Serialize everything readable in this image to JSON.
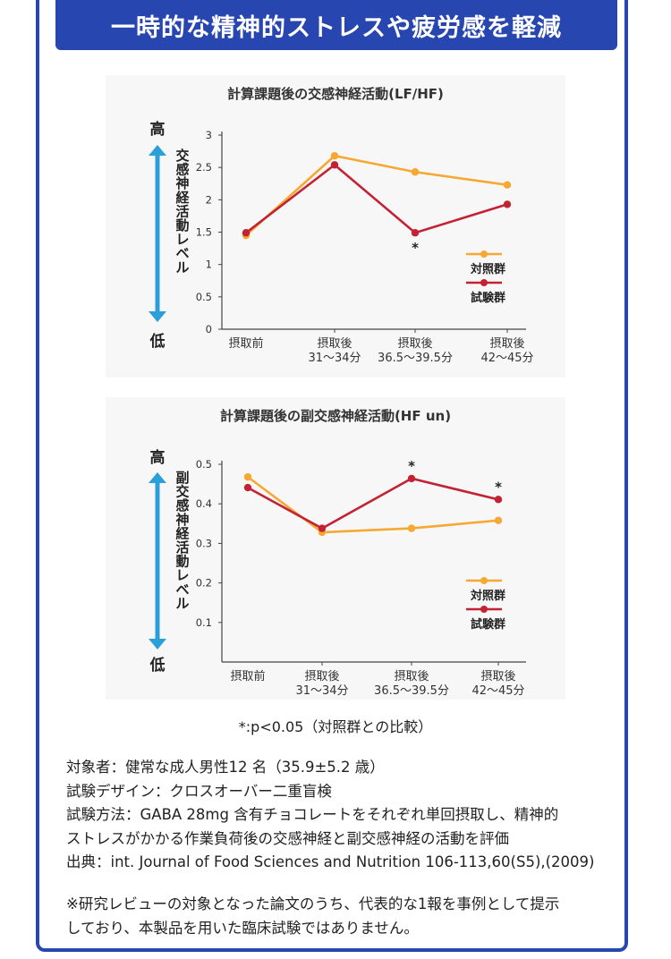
{
  "header": {
    "title": "一時的な精神的ストレスや疲労感を軽減"
  },
  "colors": {
    "control": "#f6a833",
    "test": "#c32233",
    "arrow": "#2a9fd8",
    "banner": "#2846b0"
  },
  "chart_data": [
    {
      "type": "line",
      "title": "計算課題後の交感神経活動(LF/HF)",
      "ylabel": "交感神経活動レベル",
      "y_high": "高",
      "y_low": "低",
      "categories": [
        [
          "摂取前"
        ],
        [
          "摂取後",
          "31〜34分"
        ],
        [
          "摂取後",
          "36.5〜39.5分"
        ],
        [
          "摂取後",
          "42〜45分"
        ]
      ],
      "ylim": [
        0,
        3
      ],
      "yticks": [
        "0",
        "0.5",
        "1",
        "1.5",
        "2",
        "2.5",
        "3"
      ],
      "ytick_values": [
        0,
        0.5,
        1,
        1.5,
        2,
        2.5,
        3
      ],
      "series": [
        {
          "name": "対照群",
          "values": [
            1.45,
            2.68,
            2.43,
            2.23
          ]
        },
        {
          "name": "試験群",
          "values": [
            1.49,
            2.54,
            1.49,
            1.93
          ]
        }
      ],
      "markers": [
        {
          "series": 1,
          "index": 2,
          "label": "*",
          "pos": "below"
        }
      ],
      "legend": "right"
    },
    {
      "type": "line",
      "title": "計算課題後の副交感神経活動(HF un)",
      "ylabel": "副交感神経活動レベル",
      "y_high": "高",
      "y_low": "低",
      "categories": [
        [
          "摂取前"
        ],
        [
          "摂取後",
          "31〜34分"
        ],
        [
          "摂取後",
          "36.5〜39.5分"
        ],
        [
          "摂取後",
          "42〜45分"
        ]
      ],
      "ylim": [
        0,
        0.5
      ],
      "yticks": [
        "0.1",
        "0.2",
        "0.3",
        "0.4",
        "0.5"
      ],
      "ytick_values": [
        0.1,
        0.2,
        0.3,
        0.4,
        0.5
      ],
      "series": [
        {
          "name": "対照群",
          "values": [
            0.468,
            0.328,
            0.338,
            0.358
          ]
        },
        {
          "name": "試験群",
          "values": [
            0.441,
            0.338,
            0.464,
            0.411
          ]
        }
      ],
      "markers": [
        {
          "series": 1,
          "index": 2,
          "label": "*",
          "pos": "above"
        },
        {
          "series": 1,
          "index": 3,
          "label": "*",
          "pos": "above"
        }
      ],
      "legend": "right"
    }
  ],
  "footnote": "*:p<0.05（対照群との比較）",
  "info": [
    "対象者：健常な成人男性12 名（35.9±5.2 歳）",
    "試験デザイン：クロスオーバー二重盲検",
    "試験方法：GABA 28mg 含有チョコレートをそれぞれ単回摂取し、精神的",
    "ストレスがかかる作業負荷後の交感神経と副交感神経の活動を評価",
    "出典：int. Journal of Food Sciences and Nutrition 106-113,60(S5),(2009)"
  ],
  "note": [
    "※研究レビューの対象となった論文のうち、代表的な1報を事例として提示",
    "しており、本製品を用いた臨床試験ではありません。"
  ]
}
